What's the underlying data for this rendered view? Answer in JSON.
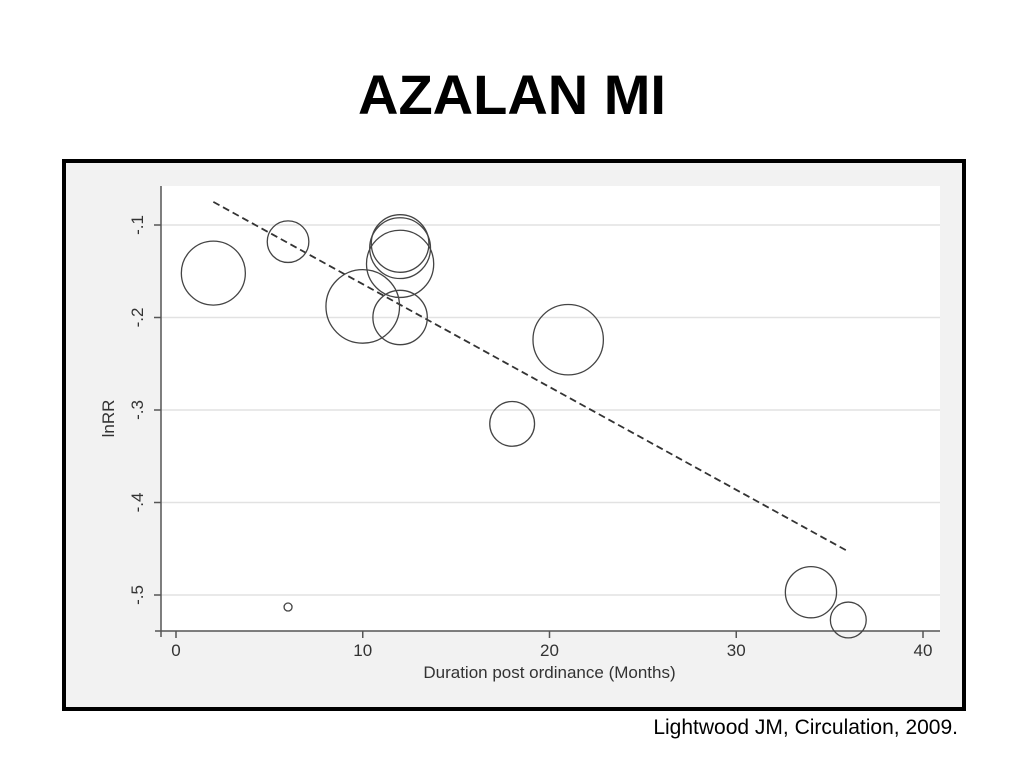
{
  "slide": {
    "title": "AZALAN MI",
    "citation": "Lightwood JM, Circulation, 2009."
  },
  "chart_data": {
    "type": "scatter",
    "subtype": "bubble",
    "title": "",
    "xlabel": "Duration post ordinance (Months)",
    "ylabel": "lnRR",
    "xlim": [
      0,
      40
    ],
    "ylim": [
      -0.54,
      -0.07
    ],
    "xticks": [
      0,
      10,
      20,
      30,
      40
    ],
    "xtick_labels": [
      "0",
      "10",
      "20",
      "30",
      "40"
    ],
    "yticks": [
      -0.1,
      -0.2,
      -0.3,
      -0.4,
      -0.5
    ],
    "ytick_labels": [
      "-.1",
      "-.2",
      "-.3",
      "-.4",
      "-.5"
    ],
    "grid": "horizontal",
    "legend": "none",
    "points": [
      {
        "x": 2,
        "y": -0.152,
        "weight": 1.0
      },
      {
        "x": 6,
        "y": -0.118,
        "weight": 0.65
      },
      {
        "x": 6,
        "y": -0.513,
        "weight": 0.08
      },
      {
        "x": 10,
        "y": -0.188,
        "weight": 1.15
      },
      {
        "x": 12,
        "y": -0.12,
        "weight": 0.9
      },
      {
        "x": 12,
        "y": -0.125,
        "weight": 0.95
      },
      {
        "x": 12,
        "y": -0.142,
        "weight": 1.05
      },
      {
        "x": 12,
        "y": -0.2,
        "weight": 0.85
      },
      {
        "x": 18,
        "y": -0.315,
        "weight": 0.7
      },
      {
        "x": 21,
        "y": -0.224,
        "weight": 1.1
      },
      {
        "x": 34,
        "y": -0.497,
        "weight": 0.8
      },
      {
        "x": 36,
        "y": -0.527,
        "weight": 0.56
      }
    ],
    "fit_line": {
      "style": "dashed",
      "x": [
        2,
        36
      ],
      "y": [
        -0.075,
        -0.453
      ]
    },
    "colors": {
      "marker": "#444444",
      "fit_line": "#333333",
      "grid": "#e2e2e2",
      "plot_background": "#ffffff",
      "outer_background": "#f2f2f2"
    }
  }
}
